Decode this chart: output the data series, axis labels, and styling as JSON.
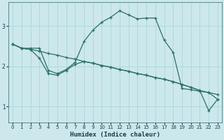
{
  "xlabel": "Humidex (Indice chaleur)",
  "bg_color": "#cce8ec",
  "line_color": "#2d6e68",
  "grid_color": "#b0d8dc",
  "xlim": [
    -0.5,
    23.5
  ],
  "ylim": [
    0.6,
    3.6
  ],
  "xticks": [
    0,
    1,
    2,
    3,
    4,
    5,
    6,
    7,
    8,
    9,
    10,
    11,
    12,
    13,
    14,
    15,
    16,
    17,
    18,
    19,
    20,
    21,
    22,
    23
  ],
  "yticks": [
    1,
    2,
    3
  ],
  "line1_x": [
    0,
    1,
    2,
    3,
    4,
    5,
    6,
    7,
    8,
    9,
    10,
    11,
    12,
    13,
    14,
    15,
    16,
    17,
    18,
    19,
    20,
    21,
    22,
    23
  ],
  "line1_y": [
    2.55,
    2.45,
    2.45,
    2.45,
    1.9,
    1.82,
    1.92,
    2.1,
    2.62,
    2.9,
    3.1,
    3.22,
    3.38,
    3.28,
    3.18,
    3.2,
    3.2,
    2.65,
    2.35,
    1.45,
    1.42,
    1.38,
    1.35,
    1.18
  ],
  "line2_x": [
    0,
    1,
    2,
    3,
    4,
    5,
    6,
    7,
    8,
    9,
    10,
    11,
    12,
    13,
    14,
    15,
    16,
    17,
    18,
    19,
    20,
    21,
    22,
    23
  ],
  "line2_y": [
    2.55,
    2.45,
    2.42,
    2.38,
    2.32,
    2.28,
    2.22,
    2.18,
    2.12,
    2.08,
    2.02,
    1.98,
    1.92,
    1.88,
    1.82,
    1.78,
    1.72,
    1.68,
    1.62,
    1.55,
    1.48,
    1.4,
    1.35,
    1.3
  ],
  "line3_x": [
    0,
    1,
    2,
    3,
    4,
    5,
    6,
    7,
    8,
    9,
    10,
    11,
    12,
    13,
    14,
    15,
    16,
    17,
    18,
    19,
    20,
    21,
    22,
    23
  ],
  "line3_y": [
    2.55,
    2.45,
    2.42,
    2.2,
    1.82,
    1.78,
    1.9,
    2.05,
    2.12,
    2.08,
    2.02,
    1.98,
    1.92,
    1.88,
    1.82,
    1.78,
    1.72,
    1.68,
    1.62,
    1.55,
    1.48,
    1.4,
    0.9,
    1.18
  ]
}
